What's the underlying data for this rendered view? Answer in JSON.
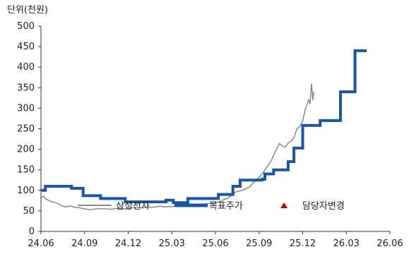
{
  "chart_data": {
    "type": "line",
    "unit_label": "단위(천원)",
    "ylim": [
      0,
      500
    ],
    "y_ticks": [
      0,
      50,
      100,
      150,
      200,
      250,
      300,
      350,
      400,
      450,
      500
    ],
    "x_tick_labels": [
      "24.06",
      "24.09",
      "24.12",
      "25.03",
      "25.06",
      "25.09",
      "25.12",
      "26.03",
      "26.06"
    ],
    "x_range": [
      "24.06",
      "26.06"
    ],
    "grid": false,
    "legend_position": "inside-bottom-center",
    "legend": [
      "삼성전자",
      "목표주가",
      "담당자변경"
    ],
    "colors": {
      "price": "#8a8a8a",
      "target": "#1a56a8",
      "marker": "#c00000",
      "axis": "#333333"
    },
    "series": [
      {
        "name": "삼성전자",
        "style": "line",
        "points": [
          [
            0.0,
            80
          ],
          [
            0.05,
            84
          ],
          [
            0.1,
            86
          ],
          [
            0.15,
            80
          ],
          [
            0.2,
            78
          ],
          [
            0.25,
            76
          ],
          [
            0.3,
            74
          ],
          [
            0.4,
            72
          ],
          [
            0.5,
            70
          ],
          [
            0.6,
            67
          ],
          [
            0.7,
            63
          ],
          [
            0.8,
            60
          ],
          [
            0.9,
            60
          ],
          [
            1.0,
            62
          ],
          [
            1.1,
            60
          ],
          [
            1.2,
            58
          ],
          [
            1.3,
            58
          ],
          [
            1.4,
            56
          ],
          [
            1.5,
            55
          ],
          [
            1.6,
            54
          ],
          [
            1.7,
            53
          ],
          [
            1.8,
            54
          ],
          [
            1.9,
            55
          ],
          [
            2.0,
            56
          ],
          [
            2.1,
            55
          ],
          [
            2.2,
            55
          ],
          [
            2.3,
            55
          ],
          [
            2.4,
            54
          ],
          [
            2.5,
            55
          ],
          [
            2.6,
            56
          ],
          [
            2.7,
            56
          ],
          [
            2.8,
            55
          ],
          [
            2.9,
            55
          ],
          [
            3.0,
            56
          ],
          [
            3.1,
            57
          ],
          [
            3.2,
            58
          ],
          [
            3.3,
            58
          ],
          [
            3.4,
            58
          ],
          [
            3.5,
            57
          ],
          [
            3.6,
            58
          ],
          [
            3.7,
            60
          ],
          [
            3.8,
            58
          ],
          [
            3.9,
            60
          ],
          [
            4.0,
            60
          ],
          [
            4.1,
            62
          ],
          [
            4.2,
            60
          ],
          [
            4.3,
            60
          ],
          [
            4.4,
            61
          ],
          [
            4.5,
            60
          ],
          [
            4.6,
            62
          ],
          [
            4.7,
            63
          ],
          [
            4.8,
            62
          ],
          [
            4.9,
            65
          ],
          [
            5.0,
            66
          ],
          [
            5.2,
            66
          ],
          [
            5.5,
            66
          ],
          [
            5.8,
            68
          ],
          [
            6.0,
            70
          ],
          [
            6.1,
            72
          ],
          [
            6.2,
            74
          ],
          [
            6.3,
            78
          ],
          [
            6.4,
            80
          ],
          [
            6.5,
            85
          ],
          [
            6.6,
            90
          ],
          [
            6.7,
            96
          ],
          [
            6.8,
            98
          ],
          [
            6.9,
            100
          ],
          [
            7.0,
            102
          ],
          [
            7.1,
            106
          ],
          [
            7.2,
            110
          ],
          [
            7.3,
            118
          ],
          [
            7.4,
            125
          ],
          [
            7.5,
            132
          ],
          [
            7.6,
            140
          ],
          [
            7.7,
            150
          ],
          [
            7.8,
            160
          ],
          [
            7.9,
            170
          ],
          [
            8.0,
            185
          ],
          [
            8.1,
            200
          ],
          [
            8.2,
            214
          ],
          [
            8.3,
            208
          ],
          [
            8.4,
            205
          ],
          [
            8.5,
            215
          ],
          [
            8.6,
            220
          ],
          [
            8.7,
            228
          ],
          [
            8.8,
            250
          ],
          [
            8.9,
            255
          ],
          [
            9.0,
            270
          ],
          [
            9.1,
            300
          ],
          [
            9.2,
            320
          ],
          [
            9.25,
            310
          ],
          [
            9.3,
            360
          ],
          [
            9.35,
            320
          ],
          [
            9.38,
            340
          ]
        ]
      },
      {
        "name": "목표주가",
        "style": "step",
        "points": [
          [
            0.0,
            100
          ],
          [
            0.15,
            100
          ],
          [
            0.15,
            110
          ],
          [
            1.05,
            110
          ],
          [
            1.05,
            105
          ],
          [
            1.45,
            105
          ],
          [
            1.45,
            87
          ],
          [
            2.05,
            87
          ],
          [
            2.05,
            80
          ],
          [
            2.9,
            80
          ],
          [
            2.9,
            72
          ],
          [
            4.3,
            72
          ],
          [
            4.3,
            76
          ],
          [
            4.55,
            76
          ],
          [
            4.55,
            70
          ],
          [
            5.05,
            70
          ],
          [
            5.05,
            80
          ],
          [
            6.1,
            80
          ],
          [
            6.1,
            90
          ],
          [
            6.6,
            90
          ],
          [
            6.6,
            110
          ],
          [
            6.85,
            110
          ],
          [
            6.85,
            125
          ],
          [
            7.6,
            125
          ],
          [
            7.6,
            127
          ],
          [
            7.7,
            127
          ],
          [
            7.7,
            140
          ],
          [
            8.0,
            140
          ],
          [
            8.0,
            150
          ],
          [
            8.5,
            150
          ],
          [
            8.5,
            170
          ],
          [
            8.7,
            170
          ],
          [
            8.7,
            203
          ],
          [
            9.0,
            203
          ],
          [
            9.0,
            258
          ],
          [
            9.6,
            258
          ],
          [
            9.6,
            270
          ],
          [
            10.3,
            270
          ],
          [
            10.3,
            340
          ],
          [
            10.8,
            340
          ],
          [
            10.8,
            440
          ],
          [
            11.2,
            440
          ]
        ]
      }
    ]
  }
}
